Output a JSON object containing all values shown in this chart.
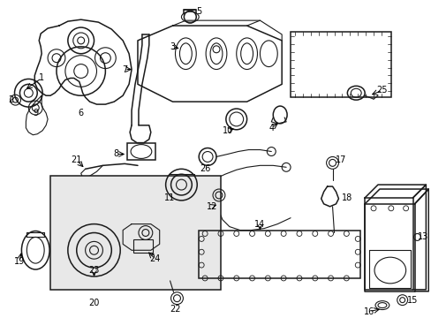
{
  "background_color": "#ffffff",
  "figsize": [
    4.89,
    3.6
  ],
  "dpi": 100,
  "line_color": "#1a1a1a",
  "text_color": "#000000",
  "label_fontsize": 7.0,
  "arrow_color": "#000000"
}
